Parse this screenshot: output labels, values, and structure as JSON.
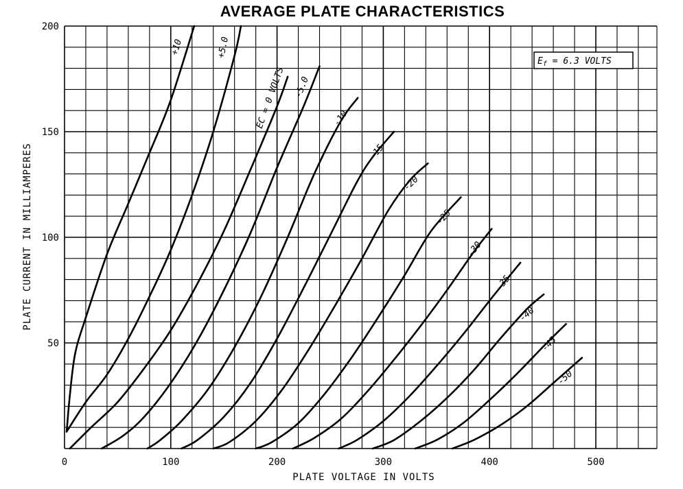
{
  "chart_data": {
    "type": "line",
    "title": "AVERAGE PLATE CHARACTERISTICS",
    "xlabel": "PLATE VOLTAGE IN VOLTS",
    "ylabel": "PLATE CURRENT IN MILLIAMPERES",
    "xlim": [
      0,
      560
    ],
    "ylim": [
      0,
      200
    ],
    "x_ticks": [
      0,
      100,
      200,
      300,
      400,
      500
    ],
    "y_ticks": [
      50,
      100,
      150,
      200
    ],
    "grid": true,
    "annotation": {
      "prefix": "E",
      "subscript": "f",
      "rest": " = 6.3 VOLTS"
    },
    "series": [
      {
        "name": "+10",
        "points": [
          [
            2,
            8
          ],
          [
            5,
            25
          ],
          [
            10,
            45
          ],
          [
            20,
            62
          ],
          [
            40,
            92
          ],
          [
            60,
            116
          ],
          [
            80,
            140
          ],
          [
            100,
            165
          ],
          [
            122,
            200
          ]
        ]
      },
      {
        "name": "+5.0",
        "points": [
          [
            2,
            8
          ],
          [
            20,
            22
          ],
          [
            40,
            35
          ],
          [
            60,
            52
          ],
          [
            80,
            72
          ],
          [
            100,
            94
          ],
          [
            120,
            120
          ],
          [
            140,
            150
          ],
          [
            160,
            186
          ],
          [
            166,
            200
          ]
        ]
      },
      {
        "name": "EC = 0 VOLTS",
        "points": [
          [
            5,
            0
          ],
          [
            25,
            10
          ],
          [
            50,
            22
          ],
          [
            75,
            38
          ],
          [
            100,
            56
          ],
          [
            125,
            78
          ],
          [
            150,
            103
          ],
          [
            175,
            132
          ],
          [
            200,
            162
          ],
          [
            210,
            176
          ]
        ]
      },
      {
        "name": "-5.0",
        "points": [
          [
            35,
            0
          ],
          [
            55,
            6
          ],
          [
            75,
            15
          ],
          [
            100,
            31
          ],
          [
            125,
            51
          ],
          [
            150,
            75
          ],
          [
            175,
            102
          ],
          [
            200,
            133
          ],
          [
            225,
            162
          ],
          [
            240,
            181
          ]
        ]
      },
      {
        "name": "-10",
        "points": [
          [
            78,
            0
          ],
          [
            90,
            4
          ],
          [
            110,
            13
          ],
          [
            135,
            28
          ],
          [
            160,
            48
          ],
          [
            185,
            72
          ],
          [
            210,
            100
          ],
          [
            235,
            130
          ],
          [
            260,
            155
          ],
          [
            276,
            166
          ]
        ]
      },
      {
        "name": "-15",
        "points": [
          [
            110,
            0
          ],
          [
            125,
            4
          ],
          [
            150,
            15
          ],
          [
            175,
            31
          ],
          [
            200,
            52
          ],
          [
            225,
            76
          ],
          [
            250,
            101
          ],
          [
            275,
            126
          ],
          [
            290,
            138
          ],
          [
            310,
            150
          ]
        ]
      },
      {
        "name": "-20",
        "points": [
          [
            140,
            0
          ],
          [
            155,
            3
          ],
          [
            180,
            13
          ],
          [
            205,
            28
          ],
          [
            230,
            47
          ],
          [
            255,
            68
          ],
          [
            280,
            90
          ],
          [
            305,
            113
          ],
          [
            325,
            127
          ],
          [
            342,
            135
          ]
        ]
      },
      {
        "name": "-25",
        "points": [
          [
            180,
            0
          ],
          [
            195,
            3
          ],
          [
            220,
            12
          ],
          [
            245,
            26
          ],
          [
            270,
            43
          ],
          [
            295,
            62
          ],
          [
            320,
            82
          ],
          [
            345,
            103
          ],
          [
            373,
            119
          ]
        ]
      },
      {
        "name": "-30",
        "points": [
          [
            215,
            0
          ],
          [
            235,
            5
          ],
          [
            260,
            14
          ],
          [
            285,
            27
          ],
          [
            310,
            42
          ],
          [
            335,
            58
          ],
          [
            360,
            75
          ],
          [
            385,
            93
          ],
          [
            402,
            104
          ]
        ]
      },
      {
        "name": "-35",
        "points": [
          [
            258,
            0
          ],
          [
            275,
            4
          ],
          [
            300,
            13
          ],
          [
            325,
            25
          ],
          [
            350,
            39
          ],
          [
            375,
            54
          ],
          [
            400,
            70
          ],
          [
            429,
            88
          ]
        ]
      },
      {
        "name": "-40",
        "points": [
          [
            290,
            0
          ],
          [
            310,
            4
          ],
          [
            335,
            13
          ],
          [
            360,
            24
          ],
          [
            385,
            37
          ],
          [
            410,
            52
          ],
          [
            435,
            66
          ],
          [
            451,
            73
          ]
        ]
      },
      {
        "name": "-45",
        "points": [
          [
            330,
            0
          ],
          [
            350,
            4
          ],
          [
            375,
            12
          ],
          [
            400,
            23
          ],
          [
            425,
            35
          ],
          [
            450,
            48
          ],
          [
            472,
            59
          ]
        ]
      },
      {
        "name": "-50",
        "points": [
          [
            365,
            0
          ],
          [
            385,
            4
          ],
          [
            410,
            11
          ],
          [
            435,
            20
          ],
          [
            460,
            31
          ],
          [
            487,
            43
          ]
        ]
      }
    ]
  }
}
